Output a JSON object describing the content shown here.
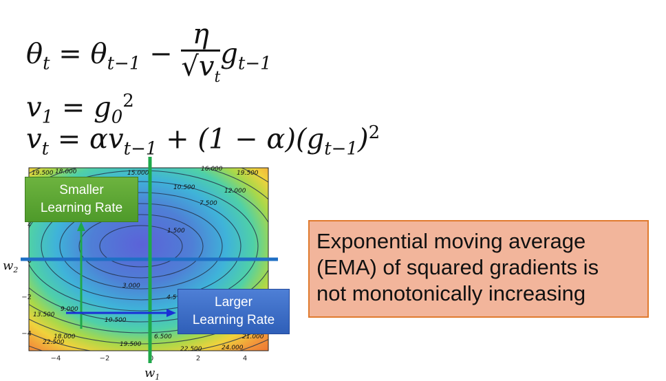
{
  "equations": {
    "line1": {
      "lhs": "θ",
      "lhs_sub": "t",
      "eq": "=",
      "term": "θ",
      "term_sub": "t−1",
      "minus": "−",
      "num": "η",
      "den_base": "v",
      "den_sub": "t",
      "g": "g",
      "g_sub": "t−1"
    },
    "line2": {
      "lhs": "v",
      "lhs_sub": "1",
      "eq": "=",
      "g": "g",
      "g_sub": "0",
      "exp": "2"
    },
    "line3": {
      "lhs": "v",
      "lhs_sub": "t",
      "eq": "=",
      "alpha": "α",
      "v": "v",
      "v_sub": "t−1",
      "plus": "+",
      "paren": "(1 − α)",
      "g_open": "(g",
      "g_sub": "t−1",
      "g_close": ")",
      "exp": "2"
    }
  },
  "plot": {
    "x_ticks": [
      "−4",
      "−2",
      "0",
      "2",
      "4"
    ],
    "y_ticks": [
      "2",
      "0",
      "−2",
      "−4"
    ],
    "contour_labels": [
      "19.500",
      "18.000",
      "15.000",
      "16.000",
      "19.500",
      "10.500",
      "12.000",
      "7.500",
      "1.500",
      "3.000",
      "4.5",
      "9.000",
      "13.500",
      "10.500",
      "18.000",
      "6.500",
      "21.000",
      "22.500",
      "19.500",
      "22.500",
      "24.000"
    ],
    "axis_w1": "w",
    "axis_w1_sub": "1",
    "axis_w2": "w",
    "axis_w2_sub": "2"
  },
  "callouts": {
    "smaller_lr": [
      "Smaller",
      "Learning Rate"
    ],
    "larger_lr": [
      "Larger",
      "Learning Rate"
    ],
    "ema_note": [
      "Exponential moving average",
      "(EMA) of squared gradients is",
      "not monotonically increasing"
    ]
  },
  "colors": {
    "vertical_line": "#1fa84a",
    "horizontal_line": "#1f6fc4",
    "small_box": "#5aa532",
    "large_box": "#3f6fcc",
    "ema_bg": "#f2b59b",
    "ema_border": "#e07a2e"
  }
}
